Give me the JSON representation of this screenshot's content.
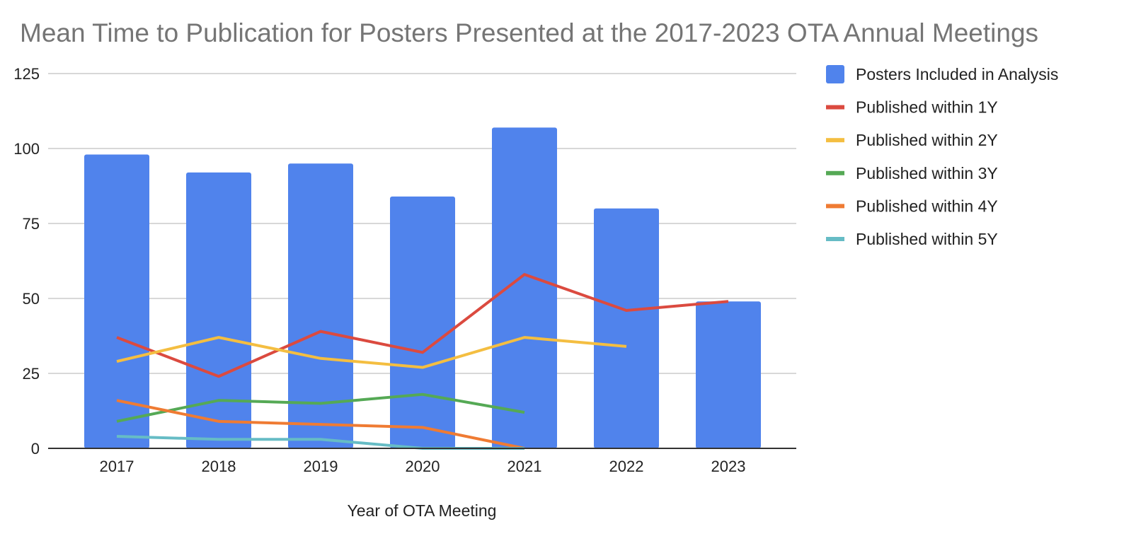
{
  "chart_data": {
    "type": "bar",
    "title": "Mean Time to Publication for Posters Presented at the 2017-2023 OTA Annual Meetings",
    "xlabel": "Year of OTA Meeting",
    "ylabel": "",
    "ylim": [
      0,
      125
    ],
    "yticks": [
      0,
      25,
      50,
      75,
      100,
      125
    ],
    "grid": true,
    "legend_position": "right",
    "categories": [
      "2017",
      "2018",
      "2019",
      "2020",
      "2021",
      "2022",
      "2023"
    ],
    "series": [
      {
        "name": "Posters Included in Analysis",
        "kind": "bar",
        "color": "#5083EC",
        "values": [
          98,
          92,
          95,
          84,
          107,
          80,
          49
        ]
      },
      {
        "name": "Published within 1Y",
        "kind": "line",
        "color": "#DB4A3F",
        "values": [
          37,
          24,
          39,
          32,
          58,
          46,
          49
        ]
      },
      {
        "name": "Published within 2Y",
        "kind": "line",
        "color": "#F4BE41",
        "values": [
          29,
          37,
          30,
          27,
          37,
          34,
          null
        ]
      },
      {
        "name": "Published within 3Y",
        "kind": "line",
        "color": "#55A955",
        "values": [
          9,
          16,
          15,
          18,
          12,
          null,
          null
        ]
      },
      {
        "name": "Published within 4Y",
        "kind": "line",
        "color": "#EF7B33",
        "values": [
          16,
          9,
          8,
          7,
          0,
          null,
          null
        ]
      },
      {
        "name": "Published within 5Y",
        "kind": "line",
        "color": "#66BCC5",
        "values": [
          4,
          3,
          3,
          0,
          0,
          null,
          null
        ]
      }
    ]
  }
}
